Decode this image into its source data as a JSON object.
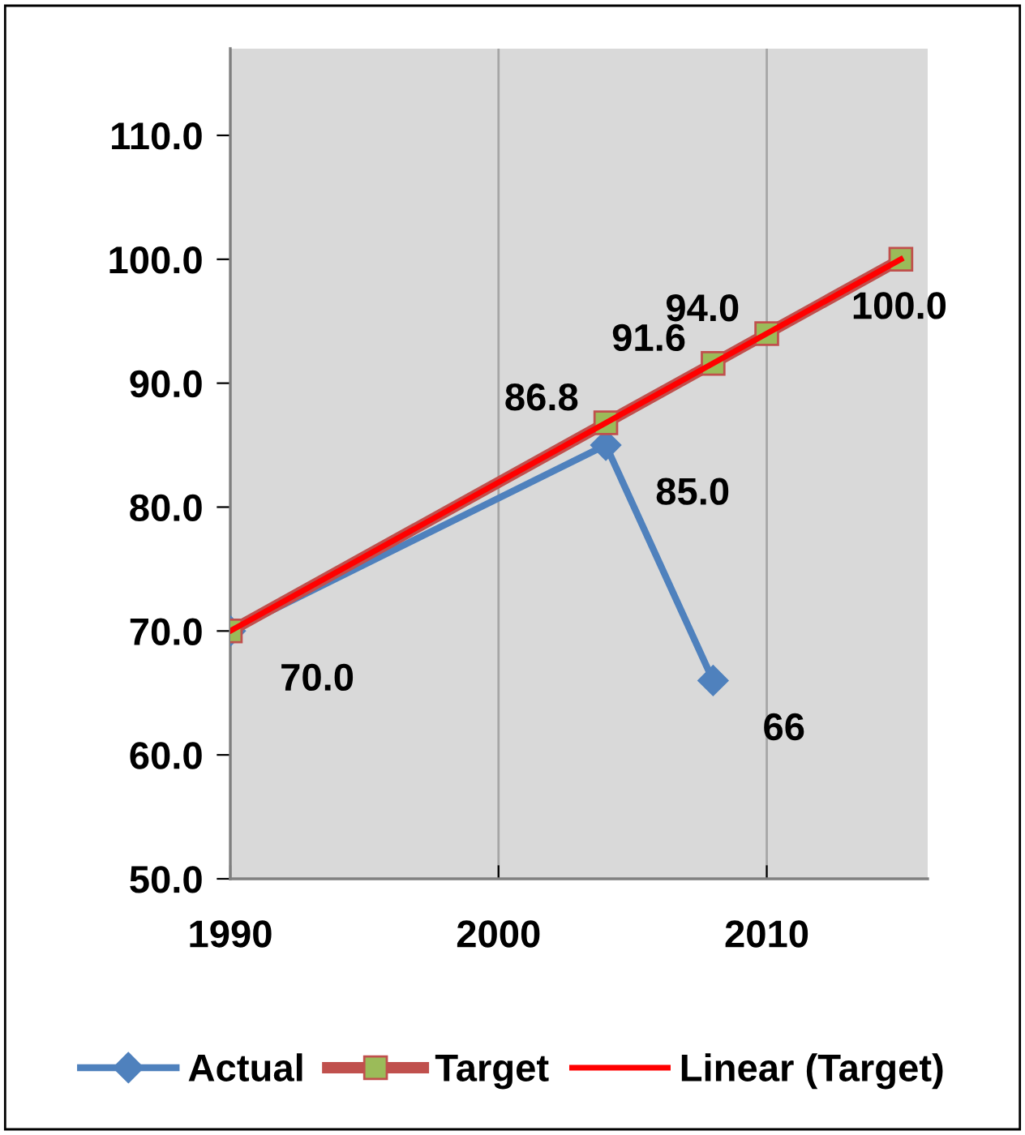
{
  "chart_data": {
    "type": "line",
    "xlim": [
      1990,
      2016
    ],
    "xticks": [
      1990,
      2000,
      2010
    ],
    "ylim": [
      50,
      117
    ],
    "yticks": [
      {
        "value": 50,
        "label": "50.0"
      },
      {
        "value": 60,
        "label": "60.0"
      },
      {
        "value": 70,
        "label": "70.0"
      },
      {
        "value": 80,
        "label": "80.0"
      },
      {
        "value": 90,
        "label": "90.0"
      },
      {
        "value": 100,
        "label": "100.0"
      },
      {
        "value": 110,
        "label": "110.0"
      }
    ],
    "grid": "x",
    "legend": "bottom",
    "series": [
      {
        "name": "Actual",
        "color": "#4f81bd",
        "marker": "diamond",
        "x": [
          1990,
          2004,
          2008
        ],
        "values": [
          70,
          85,
          66
        ],
        "value_labels": [
          "70.0",
          "85.0",
          "66"
        ]
      },
      {
        "name": "Target",
        "color": "#9bbb59",
        "marker": "square",
        "x": [
          1990,
          2004,
          2008,
          2010,
          2015
        ],
        "values": [
          70,
          86.8,
          91.6,
          94.0,
          100.0
        ],
        "value_labels": [
          null,
          "86.8",
          "91.6",
          "94.0",
          "100.0"
        ]
      },
      {
        "name": "Linear (Target)",
        "type": "line",
        "color": "#ff0000",
        "x": [
          1990,
          2015
        ],
        "values": [
          70,
          100
        ]
      }
    ]
  }
}
